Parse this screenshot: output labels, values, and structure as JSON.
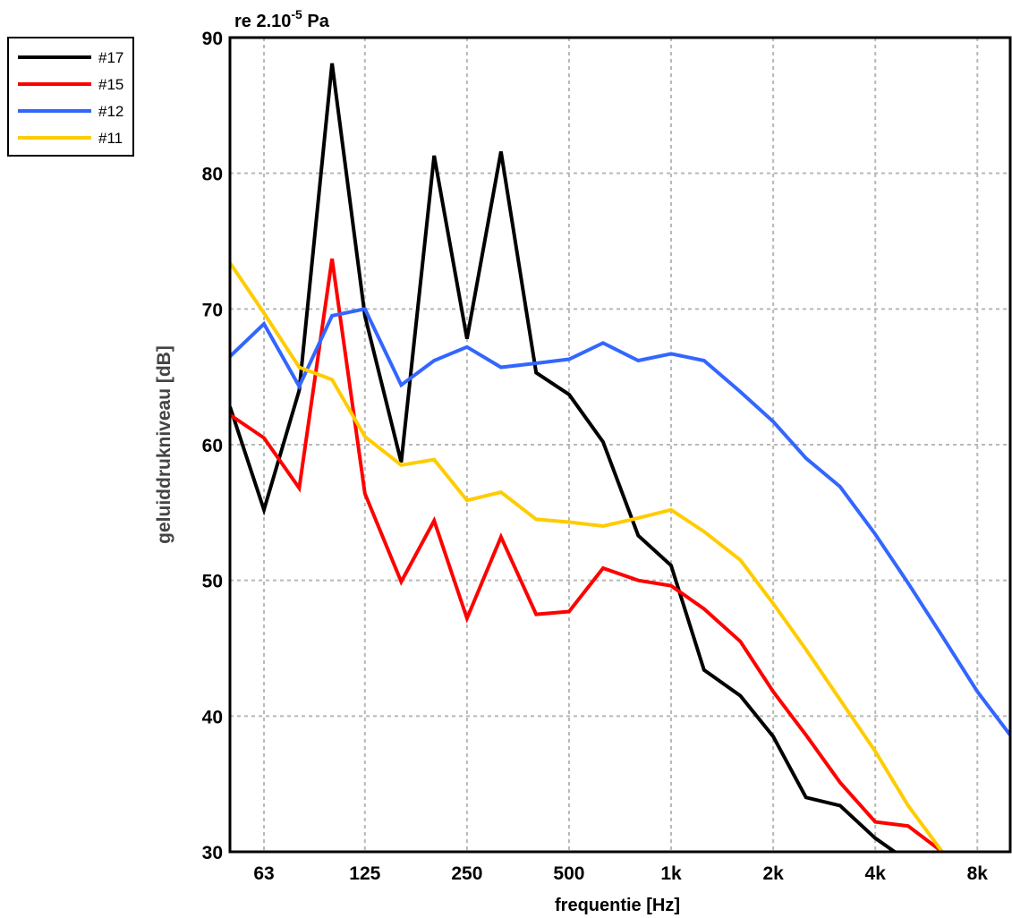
{
  "chart_data": {
    "type": "line",
    "reference_label": {
      "prefix": "re 2.10",
      "exponent": "-5",
      "suffix": " Pa"
    },
    "xlabel": "frequentie [Hz]",
    "ylabel": "geluiddrukniveau [dB]",
    "x_scale": "log",
    "x_ticks": [
      {
        "value": 63,
        "label": "63"
      },
      {
        "value": 125,
        "label": "125"
      },
      {
        "value": 250,
        "label": "250"
      },
      {
        "value": 500,
        "label": "500"
      },
      {
        "value": 1000,
        "label": "1k"
      },
      {
        "value": 2000,
        "label": "2k"
      },
      {
        "value": 4000,
        "label": "4k"
      },
      {
        "value": 8000,
        "label": "8k"
      }
    ],
    "y_ticks": [
      30,
      40,
      50,
      60,
      70,
      80,
      90
    ],
    "ylim": [
      30,
      90
    ],
    "grid": true,
    "legend_position": "top-left, outside plot",
    "x": [
      50,
      63,
      80,
      100,
      125,
      160,
      200,
      250,
      315,
      400,
      500,
      630,
      800,
      1000,
      1250,
      1600,
      2000,
      2500,
      3150,
      4000,
      5000,
      6300,
      8000,
      10000
    ],
    "series": [
      {
        "name": "#17",
        "color": "#000000",
        "values": [
          62.8,
          55.2,
          64.0,
          88.1,
          69.5,
          58.7,
          81.3,
          67.8,
          81.6,
          65.3,
          63.7,
          60.2,
          53.3,
          51.1,
          43.4,
          41.5,
          38.5,
          34.0,
          33.4,
          31.0,
          29.3,
          29.0,
          null,
          null
        ]
      },
      {
        "name": "#15",
        "color": "#ff0000",
        "values": [
          62.2,
          60.5,
          56.8,
          73.7,
          56.4,
          49.9,
          54.4,
          47.2,
          53.2,
          47.5,
          47.7,
          50.9,
          50.0,
          49.6,
          47.9,
          45.5,
          41.8,
          38.6,
          35.1,
          32.2,
          31.9,
          30.0,
          null,
          null
        ]
      },
      {
        "name": "#12",
        "color": "#3366ff",
        "values": [
          66.5,
          68.9,
          64.3,
          69.5,
          70.0,
          64.4,
          66.2,
          67.2,
          65.7,
          66.0,
          66.3,
          67.5,
          66.2,
          66.7,
          66.2,
          63.9,
          61.7,
          59.0,
          56.9,
          53.4,
          49.8,
          45.9,
          41.8,
          38.6
        ]
      },
      {
        "name": "#11",
        "color": "#ffcc00",
        "values": [
          73.4,
          69.7,
          65.7,
          64.8,
          60.6,
          58.5,
          58.9,
          55.9,
          56.5,
          54.5,
          54.3,
          54.0,
          54.6,
          55.2,
          53.6,
          51.5,
          48.3,
          44.9,
          41.2,
          37.4,
          33.4,
          30.0,
          null,
          null
        ]
      }
    ]
  }
}
